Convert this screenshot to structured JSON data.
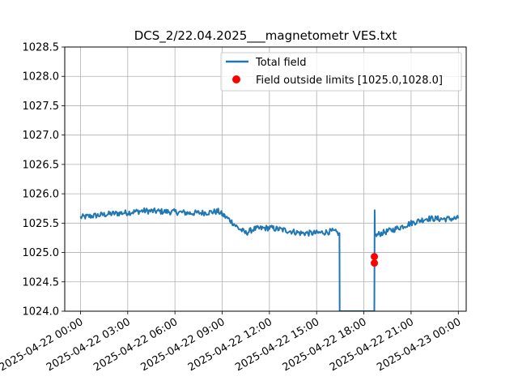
{
  "chart_data": {
    "type": "line",
    "title": "DCS_2/22.04.2025___magnetometr VES.txt",
    "xlabel": "",
    "ylabel": "",
    "xlim": [
      "2025-04-21 23:00",
      "2025-04-23 00:30"
    ],
    "ylim": [
      1024.0,
      1028.5
    ],
    "grid": true,
    "legend_placement": "top-right",
    "x_ticks": [
      "2025-04-22 00:00",
      "2025-04-22 03:00",
      "2025-04-22 06:00",
      "2025-04-22 09:00",
      "2025-04-22 12:00",
      "2025-04-22 15:00",
      "2025-04-22 18:00",
      "2025-04-22 21:00",
      "2025-04-23 00:00"
    ],
    "y_ticks": [
      "1024.0",
      "1024.5",
      "1025.0",
      "1025.5",
      "1026.0",
      "1026.5",
      "1027.0",
      "1027.5",
      "1028.0",
      "1028.5"
    ],
    "series": [
      {
        "name": "Total field",
        "color": "#1f77b4",
        "x": [
          "2025-04-22 00:00",
          "2025-04-22 01:00",
          "2025-04-22 02:00",
          "2025-04-22 03:00",
          "2025-04-22 04:00",
          "2025-04-22 05:00",
          "2025-04-22 06:00",
          "2025-04-22 07:00",
          "2025-04-22 08:00",
          "2025-04-22 08:45",
          "2025-04-22 09:30",
          "2025-04-22 10:00",
          "2025-04-22 10:30",
          "2025-04-22 11:00",
          "2025-04-22 12:00",
          "2025-04-22 13:00",
          "2025-04-22 14:00",
          "2025-04-22 15:00",
          "2025-04-22 16:00",
          "2025-04-22 16:25",
          "2025-04-22 16:27",
          "2025-04-22 16:28",
          "2025-04-22 18:40",
          "2025-04-22 18:41",
          "2025-04-22 18:42",
          "2025-04-22 18:45",
          "2025-04-22 19:00",
          "2025-04-22 20:00",
          "2025-04-22 21:00",
          "2025-04-22 22:00",
          "2025-04-22 23:00",
          "2025-04-23 00:00"
        ],
        "y": [
          1025.6,
          1025.63,
          1025.66,
          1025.68,
          1025.71,
          1025.7,
          1025.69,
          1025.67,
          1025.68,
          1025.7,
          1025.55,
          1025.42,
          1025.33,
          1025.4,
          1025.42,
          1025.38,
          1025.33,
          1025.33,
          1025.36,
          1025.33,
          1025.33,
          1024.0,
          1024.0,
          1025.72,
          1025.3,
          1025.28,
          1025.32,
          1025.4,
          1025.5,
          1025.58,
          1025.57,
          1025.58
        ],
        "noise": 0.05
      },
      {
        "name": "Field outside limits [1025.0,1028.0]",
        "type": "scatter",
        "color": "#ff0000",
        "x": [
          "2025-04-22 18:40",
          "2025-04-22 18:40"
        ],
        "y": [
          1024.93,
          1024.82
        ]
      }
    ]
  }
}
